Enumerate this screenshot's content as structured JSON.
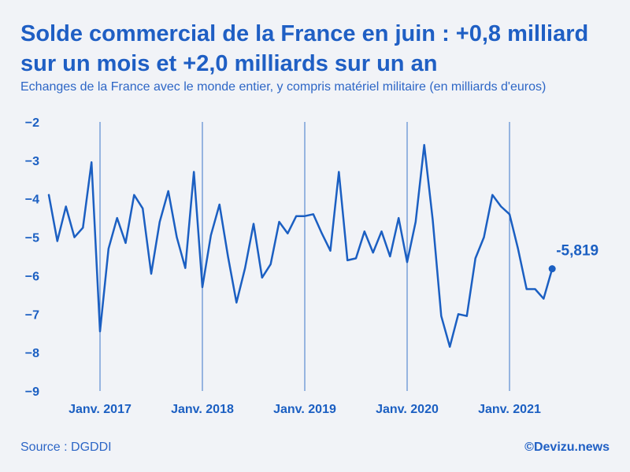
{
  "colors": {
    "line": "#1b5fc2",
    "text": "#1f5fc4",
    "background": "#f1f3f7"
  },
  "chart_data": {
    "type": "line",
    "title": "Solde commercial de la France en juin : +0,8 milliard sur un mois et +2,0 milliards sur un an",
    "subtitle": "Echanges de la France avec le monde entier, y compris matériel militaire (en milliards d'euros)",
    "xlabel": "",
    "ylabel": "",
    "ylim": [
      -9,
      -2
    ],
    "yticks": [
      -2,
      -3,
      -4,
      -5,
      -6,
      -7,
      -8,
      -9
    ],
    "ytick_labels": [
      "−2",
      "−3",
      "−4",
      "−5",
      "−6",
      "−7",
      "−8",
      "−9"
    ],
    "x_start_index": 0,
    "xticks": [
      {
        "index": 6,
        "label": "Janv. 2017"
      },
      {
        "index": 18,
        "label": "Janv. 2018"
      },
      {
        "index": 30,
        "label": "Janv. 2019"
      },
      {
        "index": 42,
        "label": "Janv. 2020"
      },
      {
        "index": 54,
        "label": "Janv. 2021"
      }
    ],
    "x_end_index": 59,
    "series": [
      {
        "name": "Solde commercial",
        "values": [
          -3.9,
          -5.1,
          -4.2,
          -5.0,
          -4.75,
          -3.05,
          -7.45,
          -5.3,
          -4.5,
          -5.15,
          -3.9,
          -4.25,
          -5.95,
          -4.6,
          -3.8,
          -5.0,
          -5.8,
          -3.3,
          -6.3,
          -4.95,
          -4.15,
          -5.5,
          -6.7,
          -5.8,
          -4.65,
          -6.05,
          -5.7,
          -4.6,
          -4.9,
          -4.45,
          -4.45,
          -4.4,
          -4.9,
          -5.35,
          -3.3,
          -5.6,
          -5.55,
          -4.85,
          -5.4,
          -4.85,
          -5.5,
          -4.5,
          -5.65,
          -4.6,
          -2.6,
          -4.55,
          -7.05,
          -7.85,
          -7.0,
          -7.05,
          -5.55,
          -5.0,
          -3.9,
          -4.2,
          -4.4,
          -5.3,
          -6.35,
          -6.35,
          -6.6,
          -5.82
        ]
      }
    ],
    "last_point_label": "-5,819"
  },
  "footer": {
    "source": "Source : DGDDI",
    "brand": "©Devizu.news"
  }
}
